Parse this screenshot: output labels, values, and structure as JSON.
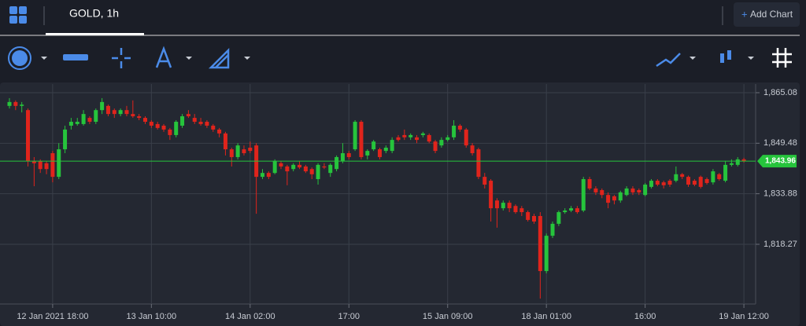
{
  "tab": "GOLD, 1h",
  "add_chart": "Add Chart",
  "chart_data": {
    "type": "candlestick",
    "up_color": "#26c43c",
    "down_color": "#e0241c",
    "grid": true,
    "ylim": [
      1799.83,
      1867.75
    ],
    "yticks": [
      {
        "value": 1818.27,
        "label": "1,818.27"
      },
      {
        "value": 1833.88,
        "label": "1,833.88"
      },
      {
        "value": 1849.48,
        "label": "1,849.48"
      },
      {
        "value": 1865.08,
        "label": "1,865.08"
      }
    ],
    "xlim": [
      -1.53,
      120.9
    ],
    "xticks": [
      {
        "value": 7,
        "label": "12 Jan 2021 18:00"
      },
      {
        "value": 23,
        "label": "13 Jan 10:00"
      },
      {
        "value": 39,
        "label": "14 Jan 02:00"
      },
      {
        "value": 55,
        "label": "17:00"
      },
      {
        "value": 71,
        "label": "15 Jan 09:00"
      },
      {
        "value": 87,
        "label": "18 Jan 01:00"
      },
      {
        "value": 103,
        "label": "16:00"
      },
      {
        "value": 119,
        "label": "19 Jan 12:00"
      }
    ],
    "last_price": {
      "value": 1843.96,
      "label": "1,843.96"
    },
    "open": [
      1861.0,
      1862.2,
      1861.0,
      1859.7,
      1844.0,
      1844.0,
      1843.3,
      1846.4,
      1839.1,
      1847.6,
      1854.9,
      1855.4,
      1855.4,
      1857.3,
      1856.1,
      1859.7,
      1861.0,
      1859.7,
      1858.5,
      1859.7,
      1858.5,
      1857.8,
      1857.3,
      1856.1,
      1855.4,
      1854.9,
      1853.7,
      1852.0,
      1854.9,
      1858.5,
      1857.3,
      1856.1,
      1856.1,
      1854.9,
      1853.7,
      1852.5,
      1847.6,
      1845.2,
      1847.6,
      1848.1,
      1848.8,
      1839.1,
      1840.3,
      1840.3,
      1843.3,
      1842.3,
      1841.5,
      1842.8,
      1842.3,
      1841.5,
      1838.4,
      1842.3,
      1840.3,
      1841.5,
      1844.0,
      1846.4,
      1847.6,
      1856.1,
      1845.7,
      1847.6,
      1847.6,
      1847.1,
      1847.1,
      1851.3,
      1852.0,
      1851.3,
      1851.3,
      1852.0,
      1852.0,
      1850.0,
      1848.8,
      1850.5,
      1851.3,
      1854.9,
      1853.7,
      1848.8,
      1847.6,
      1839.1,
      1837.9,
      1831.8,
      1829.4,
      1831.1,
      1830.1,
      1829.4,
      1828.2,
      1827.0,
      1827.0,
      1810.0,
      1820.9,
      1824.6,
      1828.2,
      1828.7,
      1829.4,
      1828.7,
      1838.4,
      1835.5,
      1835.0,
      1833.5,
      1833.1,
      1831.8,
      1833.5,
      1835.5,
      1835.0,
      1833.5,
      1836.0,
      1837.9,
      1837.4,
      1837.9,
      1837.9,
      1839.9,
      1839.1,
      1837.9,
      1839.1,
      1838.4,
      1837.4,
      1839.9,
      1837.9,
      1842.8,
      1842.8,
      1844.5
    ],
    "high": [
      1863.4,
      1862.7,
      1862.2,
      1860.2,
      1845.2,
      1844.5,
      1844.0,
      1847.1,
      1849.5,
      1854.9,
      1857.3,
      1857.3,
      1859.7,
      1857.8,
      1860.2,
      1863.4,
      1861.4,
      1860.2,
      1860.2,
      1861.0,
      1862.7,
      1858.5,
      1857.8,
      1856.6,
      1856.1,
      1855.4,
      1854.2,
      1856.6,
      1858.5,
      1859.7,
      1858.5,
      1857.3,
      1856.6,
      1855.4,
      1854.2,
      1853.0,
      1848.1,
      1849.5,
      1848.8,
      1850.0,
      1849.5,
      1841.5,
      1840.8,
      1844.5,
      1844.0,
      1842.8,
      1843.3,
      1844.0,
      1842.8,
      1842.0,
      1843.3,
      1843.3,
      1843.3,
      1845.7,
      1849.5,
      1847.1,
      1856.6,
      1856.6,
      1847.6,
      1850.5,
      1848.1,
      1848.8,
      1851.3,
      1852.0,
      1853.7,
      1852.5,
      1852.0,
      1853.0,
      1852.5,
      1850.5,
      1851.3,
      1852.0,
      1856.6,
      1855.4,
      1854.2,
      1849.5,
      1848.1,
      1840.3,
      1838.4,
      1832.5,
      1831.8,
      1831.8,
      1830.6,
      1830.1,
      1828.7,
      1827.7,
      1828.2,
      1821.6,
      1825.3,
      1828.7,
      1829.4,
      1830.1,
      1830.1,
      1839.1,
      1839.1,
      1836.2,
      1835.5,
      1834.3,
      1833.5,
      1834.8,
      1836.2,
      1836.2,
      1835.5,
      1837.2,
      1838.4,
      1838.4,
      1837.9,
      1838.4,
      1842.3,
      1840.3,
      1839.5,
      1838.4,
      1839.5,
      1838.9,
      1841.5,
      1840.3,
      1844.0,
      1844.5,
      1845.2,
      1845.0
    ],
    "low": [
      1860.2,
      1859.7,
      1859.0,
      1842.3,
      1836.2,
      1840.3,
      1839.9,
      1837.4,
      1838.4,
      1846.4,
      1853.7,
      1854.9,
      1854.9,
      1855.4,
      1855.4,
      1858.5,
      1857.8,
      1857.3,
      1857.8,
      1857.8,
      1857.3,
      1856.6,
      1855.4,
      1854.2,
      1853.7,
      1853.0,
      1850.5,
      1851.3,
      1854.2,
      1857.3,
      1855.4,
      1854.9,
      1854.2,
      1853.0,
      1851.3,
      1845.7,
      1842.3,
      1844.5,
      1845.7,
      1846.4,
      1827.7,
      1838.4,
      1838.4,
      1839.9,
      1841.5,
      1836.5,
      1840.8,
      1841.5,
      1840.3,
      1838.4,
      1836.7,
      1841.5,
      1839.1,
      1840.8,
      1843.3,
      1844.5,
      1847.1,
      1844.5,
      1844.5,
      1847.1,
      1844.5,
      1846.4,
      1846.4,
      1850.0,
      1850.5,
      1850.5,
      1849.5,
      1851.3,
      1849.5,
      1846.4,
      1848.1,
      1850.0,
      1850.5,
      1853.0,
      1848.1,
      1845.7,
      1838.4,
      1835.5,
      1825.3,
      1823.4,
      1828.7,
      1828.2,
      1827.7,
      1827.0,
      1825.3,
      1824.6,
      1801.5,
      1809.3,
      1820.2,
      1823.9,
      1827.7,
      1828.2,
      1827.7,
      1828.2,
      1835.0,
      1833.5,
      1832.5,
      1829.4,
      1830.6,
      1831.1,
      1833.1,
      1833.5,
      1833.5,
      1833.1,
      1835.5,
      1836.2,
      1835.5,
      1836.0,
      1837.4,
      1838.4,
      1836.0,
      1836.2,
      1835.5,
      1836.7,
      1836.7,
      1837.9,
      1837.4,
      1842.3,
      1842.3,
      1843.5
    ],
    "close": [
      1862.2,
      1861.0,
      1861.4,
      1844.0,
      1843.3,
      1841.5,
      1841.5,
      1839.1,
      1847.6,
      1853.7,
      1856.1,
      1856.1,
      1858.5,
      1856.1,
      1859.7,
      1862.2,
      1858.5,
      1858.5,
      1859.7,
      1858.5,
      1857.8,
      1857.3,
      1856.1,
      1854.9,
      1854.2,
      1853.7,
      1852.0,
      1856.1,
      1857.8,
      1857.8,
      1856.1,
      1855.4,
      1854.9,
      1853.7,
      1852.5,
      1847.6,
      1845.2,
      1848.8,
      1846.4,
      1847.1,
      1839.1,
      1840.3,
      1839.1,
      1844.0,
      1842.3,
      1840.8,
      1842.8,
      1842.0,
      1840.8,
      1839.9,
      1842.8,
      1842.0,
      1842.8,
      1845.2,
      1846.4,
      1845.2,
      1856.1,
      1845.2,
      1847.1,
      1850.0,
      1845.2,
      1848.1,
      1850.5,
      1850.5,
      1851.3,
      1852.0,
      1850.5,
      1852.5,
      1850.0,
      1847.1,
      1850.5,
      1851.3,
      1854.9,
      1853.7,
      1848.8,
      1846.4,
      1839.1,
      1836.7,
      1829.4,
      1829.4,
      1831.1,
      1829.4,
      1828.2,
      1828.2,
      1825.8,
      1825.3,
      1810.0,
      1820.9,
      1824.6,
      1828.2,
      1828.7,
      1829.4,
      1828.2,
      1838.4,
      1835.5,
      1834.3,
      1833.5,
      1831.1,
      1831.8,
      1834.3,
      1835.5,
      1834.3,
      1834.3,
      1836.7,
      1837.9,
      1836.7,
      1836.5,
      1836.7,
      1839.9,
      1839.1,
      1836.7,
      1836.7,
      1836.0,
      1837.2,
      1840.8,
      1838.4,
      1842.8,
      1843.3,
      1844.5,
      1843.96
    ]
  }
}
